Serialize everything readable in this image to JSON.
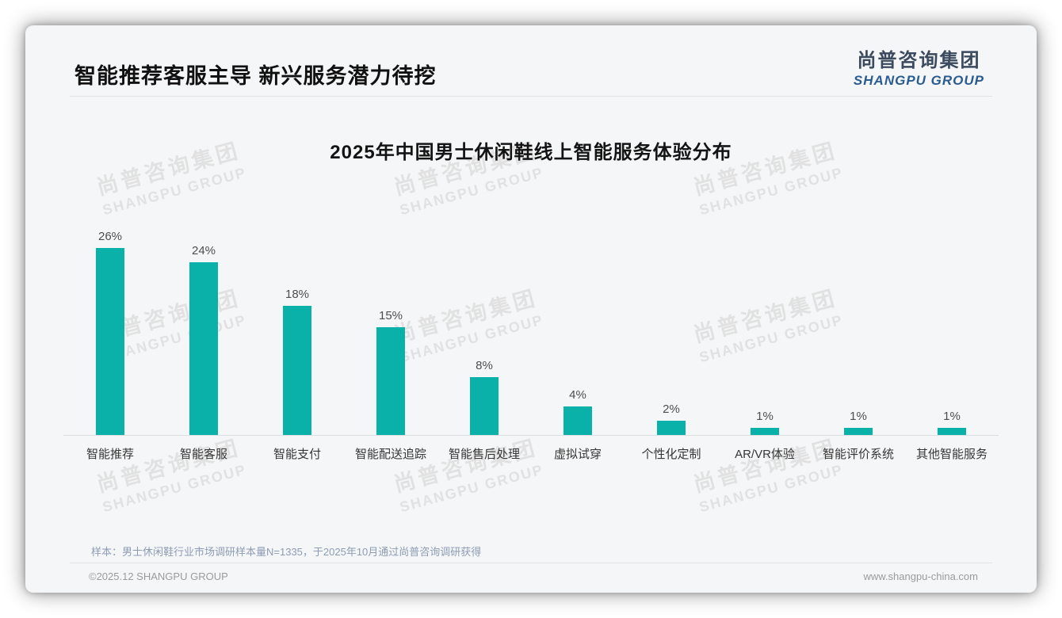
{
  "page": {
    "title": "智能推荐客服主导 新兴服务潜力待挖",
    "logo": {
      "cn": "尚普咨询集团",
      "en": "SHANGPU GROUP"
    },
    "watermark": {
      "cn": "尚普咨询集团",
      "en": "SHANGPU GROUP"
    },
    "footer": {
      "note": "样本：男士休闲鞋行业市场调研样本量N=1335，于2025年10月通过尚普咨询调研获得",
      "copyright": "©2025.12 SHANGPU GROUP",
      "website": "www.shangpu-china.com"
    }
  },
  "chart_data": {
    "type": "bar",
    "title": "2025年中国男士休闲鞋线上智能服务体验分布",
    "categories": [
      "智能推荐",
      "智能客服",
      "智能支付",
      "智能配送追踪",
      "智能售后处理",
      "虚拟试穿",
      "个性化定制",
      "AR/VR体验",
      "智能评价系统",
      "其他智能服务"
    ],
    "values": [
      26,
      24,
      18,
      15,
      8,
      4,
      2,
      1,
      1,
      1
    ],
    "value_labels": [
      "26%",
      "24%",
      "18%",
      "15%",
      "8%",
      "4%",
      "2%",
      "1%",
      "1%",
      "1%"
    ],
    "unit": "%",
    "bar_color": "#0ab1a9",
    "ylim": [
      0,
      28
    ],
    "grid": false,
    "legend": null,
    "xlabel": "",
    "ylabel": ""
  }
}
